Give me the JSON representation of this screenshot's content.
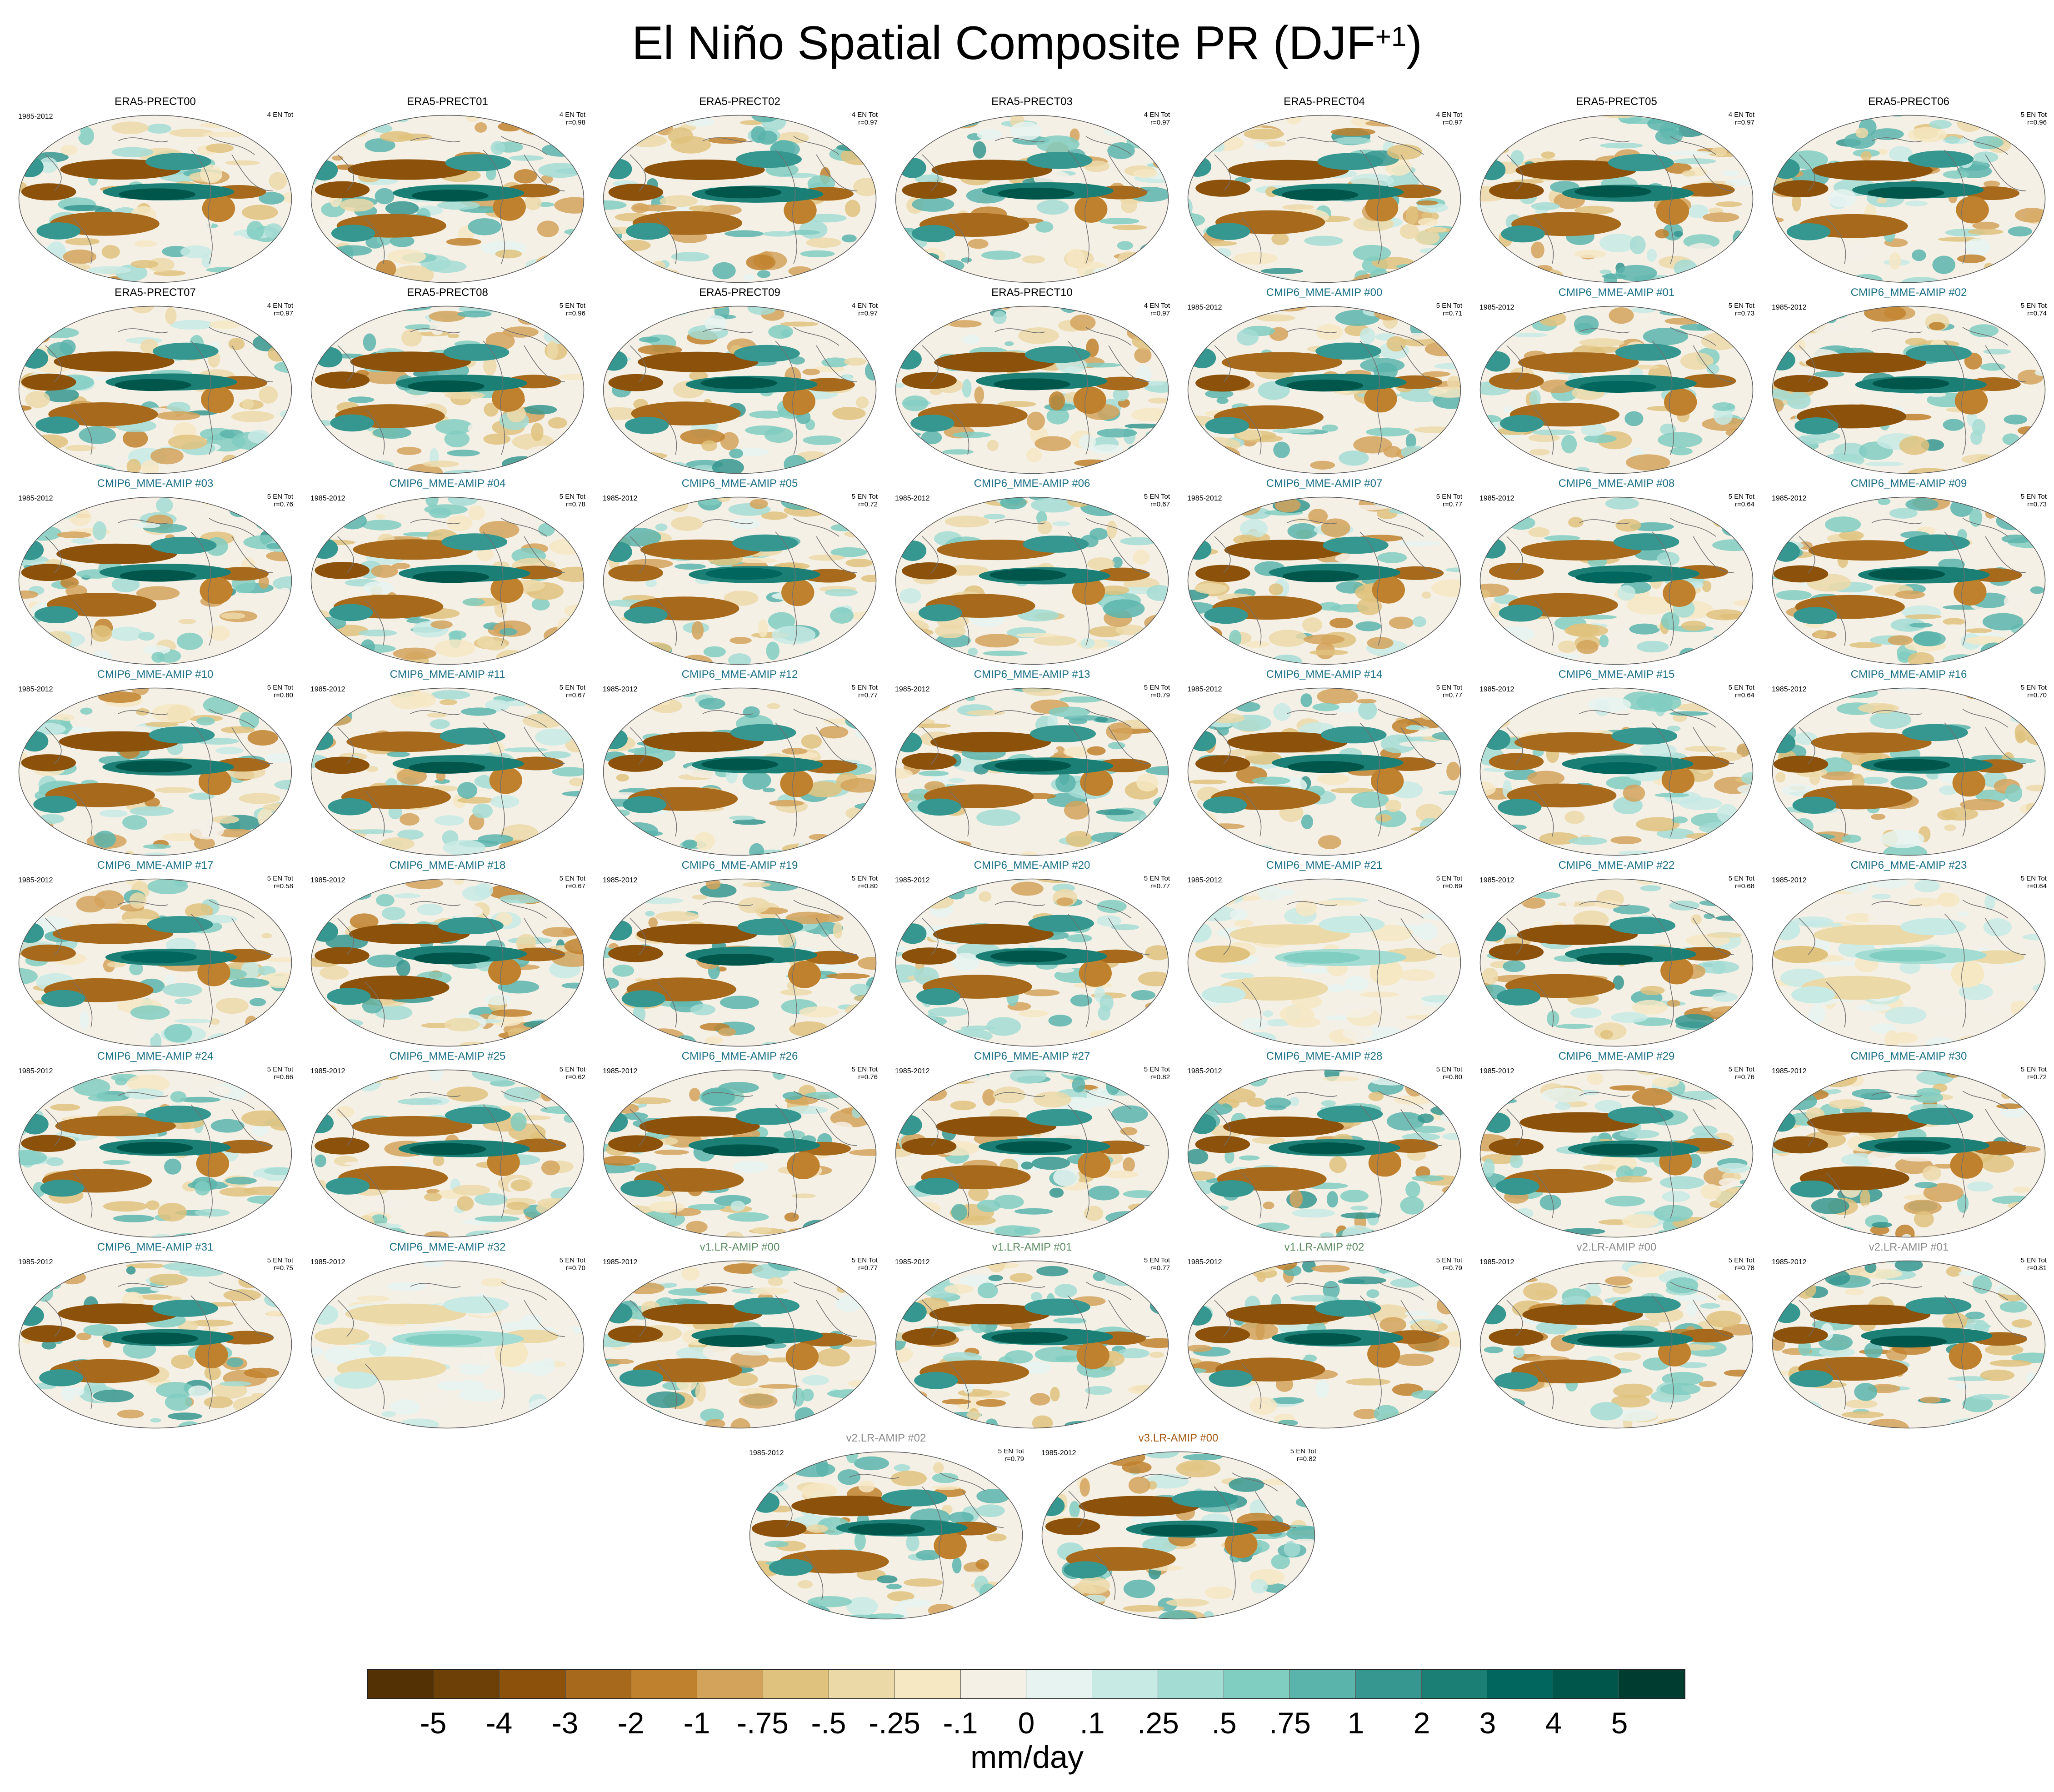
{
  "title": {
    "main": "El Niño Spatial Composite PR (DJF",
    "sup": "+1",
    "close": ")"
  },
  "colors": {
    "ERA5": "#000000",
    "CMIP6": "#1b6f86",
    "v1": "#5d8c63",
    "v2": "#8c8c8c",
    "v3": "#a65a14"
  },
  "panels": [
    {
      "label": "ERA5-PRECT00",
      "group": "ERA5",
      "period": "1985-2012",
      "stat1": "4 EN Tot",
      "stat2": "",
      "amp": 1.0,
      "seed": 1
    },
    {
      "label": "ERA5-PRECT01",
      "group": "ERA5",
      "period": "",
      "stat1": "4 EN Tot",
      "stat2": "r=0.98",
      "amp": 1.0,
      "seed": 2
    },
    {
      "label": "ERA5-PRECT02",
      "group": "ERA5",
      "period": "",
      "stat1": "4 EN Tot",
      "stat2": "r=0.97",
      "amp": 1.0,
      "seed": 3
    },
    {
      "label": "ERA5-PRECT03",
      "group": "ERA5",
      "period": "",
      "stat1": "4 EN Tot",
      "stat2": "r=0.97",
      "amp": 1.0,
      "seed": 4
    },
    {
      "label": "ERA5-PRECT04",
      "group": "ERA5",
      "period": "",
      "stat1": "4 EN Tot",
      "stat2": "r=0.97",
      "amp": 1.0,
      "seed": 5
    },
    {
      "label": "ERA5-PRECT05",
      "group": "ERA5",
      "period": "",
      "stat1": "4 EN Tot",
      "stat2": "r=0.97",
      "amp": 1.0,
      "seed": 6
    },
    {
      "label": "ERA5-PRECT06",
      "group": "ERA5",
      "period": "",
      "stat1": "5 EN Tot",
      "stat2": "r=0.96",
      "amp": 1.0,
      "seed": 7
    },
    {
      "label": "ERA5-PRECT07",
      "group": "ERA5",
      "period": "",
      "stat1": "4 EN Tot",
      "stat2": "r=0.97",
      "amp": 1.0,
      "seed": 8
    },
    {
      "label": "ERA5-PRECT08",
      "group": "ERA5",
      "period": "",
      "stat1": "5 EN Tot",
      "stat2": "r=0.96",
      "amp": 1.0,
      "seed": 9
    },
    {
      "label": "ERA5-PRECT09",
      "group": "ERA5",
      "period": "",
      "stat1": "4 EN Tot",
      "stat2": "r=0.97",
      "amp": 1.0,
      "seed": 10
    },
    {
      "label": "ERA5-PRECT10",
      "group": "ERA5",
      "period": "",
      "stat1": "4 EN Tot",
      "stat2": "r=0.97",
      "amp": 1.0,
      "seed": 11
    },
    {
      "label": "CMIP6_MME-AMIP  #00",
      "group": "CMIP6",
      "period": "1985-2012",
      "stat1": "5 EN Tot",
      "stat2": "r=0.71",
      "amp": 0.9,
      "seed": 12
    },
    {
      "label": "CMIP6_MME-AMIP  #01",
      "group": "CMIP6",
      "period": "1985-2012",
      "stat1": "5 EN Tot",
      "stat2": "r=0.73",
      "amp": 0.85,
      "seed": 13
    },
    {
      "label": "CMIP6_MME-AMIP  #02",
      "group": "CMIP6",
      "period": "1985-2012",
      "stat1": "5 EN Tot",
      "stat2": "r=0.74",
      "amp": 1.1,
      "seed": 14
    },
    {
      "label": "CMIP6_MME-AMIP  #03",
      "group": "CMIP6",
      "period": "1985-2012",
      "stat1": "5 EN Tot",
      "stat2": "r=0.76",
      "amp": 1.0,
      "seed": 15
    },
    {
      "label": "CMIP6_MME-AMIP  #04",
      "group": "CMIP6",
      "period": "1985-2012",
      "stat1": "5 EN Tot",
      "stat2": "r=0.78",
      "amp": 0.9,
      "seed": 16
    },
    {
      "label": "CMIP6_MME-AMIP  #05",
      "group": "CMIP6",
      "period": "1985-2012",
      "stat1": "5 EN Tot",
      "stat2": "r=0.72",
      "amp": 0.85,
      "seed": 17
    },
    {
      "label": "CMIP6_MME-AMIP  #06",
      "group": "CMIP6",
      "period": "1985-2012",
      "stat1": "5 EN Tot",
      "stat2": "r=0.67",
      "amp": 0.9,
      "seed": 18
    },
    {
      "label": "CMIP6_MME-AMIP  #07",
      "group": "CMIP6",
      "period": "1985-2012",
      "stat1": "5 EN Tot",
      "stat2": "r=0.77",
      "amp": 1.0,
      "seed": 19
    },
    {
      "label": "CMIP6_MME-AMIP  #08",
      "group": "CMIP6",
      "period": "1985-2012",
      "stat1": "5 EN Tot",
      "stat2": "r=0.64",
      "amp": 0.85,
      "seed": 20
    },
    {
      "label": "CMIP6_MME-AMIP  #09",
      "group": "CMIP6",
      "period": "1985-2012",
      "stat1": "5 EN Tot",
      "stat2": "r=0.73",
      "amp": 0.9,
      "seed": 21
    },
    {
      "label": "CMIP6_MME-AMIP  #10",
      "group": "CMIP6",
      "period": "1985-2012",
      "stat1": "5 EN Tot",
      "stat2": "r=0.80",
      "amp": 1.0,
      "seed": 22
    },
    {
      "label": "CMIP6_MME-AMIP  #11",
      "group": "CMIP6",
      "period": "1985-2012",
      "stat1": "5 EN Tot",
      "stat2": "r=0.67",
      "amp": 0.9,
      "seed": 23
    },
    {
      "label": "CMIP6_MME-AMIP  #12",
      "group": "CMIP6",
      "period": "1985-2012",
      "stat1": "5 EN Tot",
      "stat2": "r=0.77",
      "amp": 0.95,
      "seed": 24
    },
    {
      "label": "CMIP6_MME-AMIP  #13",
      "group": "CMIP6",
      "period": "1985-2012",
      "stat1": "5 EN Tot",
      "stat2": "r=0.79",
      "amp": 1.0,
      "seed": 25
    },
    {
      "label": "CMIP6_MME-AMIP  #14",
      "group": "CMIP6",
      "period": "1985-2012",
      "stat1": "5 EN Tot",
      "stat2": "r=0.77",
      "amp": 1.0,
      "seed": 26
    },
    {
      "label": "CMIP6_MME-AMIP  #15",
      "group": "CMIP6",
      "period": "1985-2012",
      "stat1": "5 EN Tot",
      "stat2": "r=0.64",
      "amp": 0.85,
      "seed": 27
    },
    {
      "label": "CMIP6_MME-AMIP  #16",
      "group": "CMIP6",
      "period": "1985-2012",
      "stat1": "5 EN Tot",
      "stat2": "r=0.70",
      "amp": 0.9,
      "seed": 28
    },
    {
      "label": "CMIP6_MME-AMIP  #17",
      "group": "CMIP6",
      "period": "1985-2012",
      "stat1": "5 EN Tot",
      "stat2": "r=0.58",
      "amp": 0.85,
      "seed": 29
    },
    {
      "label": "CMIP6_MME-AMIP  #18",
      "group": "CMIP6",
      "period": "1985-2012",
      "stat1": "5 EN Tot",
      "stat2": "r=0.67",
      "amp": 1.1,
      "seed": 30
    },
    {
      "label": "CMIP6_MME-AMIP  #19",
      "group": "CMIP6",
      "period": "1985-2012",
      "stat1": "5 EN Tot",
      "stat2": "r=0.80",
      "amp": 1.0,
      "seed": 31
    },
    {
      "label": "CMIP6_MME-AMIP  #20",
      "group": "CMIP6",
      "period": "1985-2012",
      "stat1": "5 EN Tot",
      "stat2": "r=0.77",
      "amp": 0.95,
      "seed": 32
    },
    {
      "label": "CMIP6_MME-AMIP  #21",
      "group": "CMIP6",
      "period": "1985-2012",
      "stat1": "5 EN Tot",
      "stat2": "r=0.69",
      "amp": 0.15,
      "seed": 33
    },
    {
      "label": "CMIP6_MME-AMIP  #22",
      "group": "CMIP6",
      "period": "1985-2012",
      "stat1": "5 EN Tot",
      "stat2": "r=0.68",
      "amp": 1.0,
      "seed": 34
    },
    {
      "label": "CMIP6_MME-AMIP  #23",
      "group": "CMIP6",
      "period": "1985-2012",
      "stat1": "5 EN Tot",
      "stat2": "r=0.64",
      "amp": 0.15,
      "seed": 35
    },
    {
      "label": "CMIP6_MME-AMIP  #24",
      "group": "CMIP6",
      "period": "1985-2012",
      "stat1": "5 EN Tot",
      "stat2": "r=0.66",
      "amp": 0.9,
      "seed": 36
    },
    {
      "label": "CMIP6_MME-AMIP  #25",
      "group": "CMIP6",
      "period": "1985-2012",
      "stat1": "5 EN Tot",
      "stat2": "r=0.62",
      "amp": 0.9,
      "seed": 37
    },
    {
      "label": "CMIP6_MME-AMIP  #26",
      "group": "CMIP6",
      "period": "1985-2012",
      "stat1": "5 EN Tot",
      "stat2": "r=0.76",
      "amp": 0.95,
      "seed": 38
    },
    {
      "label": "CMIP6_MME-AMIP  #27",
      "group": "CMIP6",
      "period": "1985-2012",
      "stat1": "5 EN Tot",
      "stat2": "r=0.82",
      "amp": 1.0,
      "seed": 39
    },
    {
      "label": "CMIP6_MME-AMIP  #28",
      "group": "CMIP6",
      "period": "1985-2012",
      "stat1": "5 EN Tot",
      "stat2": "r=0.80",
      "amp": 1.0,
      "seed": 40
    },
    {
      "label": "CMIP6_MME-AMIP  #29",
      "group": "CMIP6",
      "period": "1985-2012",
      "stat1": "5 EN Tot",
      "stat2": "r=0.76",
      "amp": 1.0,
      "seed": 41
    },
    {
      "label": "CMIP6_MME-AMIP  #30",
      "group": "CMIP6",
      "period": "1985-2012",
      "stat1": "5 EN Tot",
      "stat2": "r=0.72",
      "amp": 1.1,
      "seed": 42
    },
    {
      "label": "CMIP6_MME-AMIP  #31",
      "group": "CMIP6",
      "period": "1985-2012",
      "stat1": "5 EN Tot",
      "stat2": "r=0.75",
      "amp": 1.0,
      "seed": 43
    },
    {
      "label": "CMIP6_MME-AMIP  #32",
      "group": "CMIP6",
      "period": "1985-2012",
      "stat1": "5 EN Tot",
      "stat2": "r=0.70",
      "amp": 0.12,
      "seed": 44
    },
    {
      "label": "v1.LR-AMIP  #00",
      "group": "v1",
      "period": "1985-2012",
      "stat1": "5 EN Tot",
      "stat2": "r=0.77",
      "amp": 1.0,
      "seed": 45
    },
    {
      "label": "v1.LR-AMIP  #01",
      "group": "v1",
      "period": "1985-2012",
      "stat1": "5 EN Tot",
      "stat2": "r=0.77",
      "amp": 1.0,
      "seed": 46
    },
    {
      "label": "v1.LR-AMIP  #02",
      "group": "v1",
      "period": "1985-2012",
      "stat1": "5 EN Tot",
      "stat2": "r=0.79",
      "amp": 1.0,
      "seed": 47
    },
    {
      "label": "v2.LR-AMIP  #00",
      "group": "v2",
      "period": "1985-2012",
      "stat1": "5 EN Tot",
      "stat2": "r=0.78",
      "amp": 1.0,
      "seed": 48
    },
    {
      "label": "v2.LR-AMIP  #01",
      "group": "v2",
      "period": "1985-2012",
      "stat1": "5 EN Tot",
      "stat2": "r=0.81",
      "amp": 1.0,
      "seed": 49
    },
    {
      "label": "v2.LR-AMIP  #02",
      "group": "v2",
      "period": "1985-2012",
      "stat1": "5 EN Tot",
      "stat2": "r=0.79",
      "amp": 1.0,
      "seed": 50
    },
    {
      "label": "v3.LR-AMIP  #00",
      "group": "v3",
      "period": "1985-2012",
      "stat1": "5 EN Tot",
      "stat2": "r=0.82",
      "amp": 1.0,
      "seed": 51
    }
  ],
  "colorbar": {
    "colors": [
      "#543005",
      "#6d4008",
      "#8c510a",
      "#a76a1c",
      "#bf812d",
      "#d3a35c",
      "#dfc27d",
      "#ecd9a8",
      "#f6e8c3",
      "#f5f0e6",
      "#e6f3f0",
      "#c7eae5",
      "#a3dcd3",
      "#80cdc1",
      "#5ab4ac",
      "#35978f",
      "#1c7f75",
      "#01665e",
      "#01564c",
      "#003c30"
    ],
    "labels": [
      "-5",
      "-4",
      "-3",
      "-2",
      "-1",
      "-.75",
      "-.5",
      "-.25",
      "-.1",
      "0",
      ".1",
      ".25",
      ".5",
      ".75",
      "1",
      "2",
      "3",
      "4",
      "5"
    ],
    "units": "mm/day"
  }
}
